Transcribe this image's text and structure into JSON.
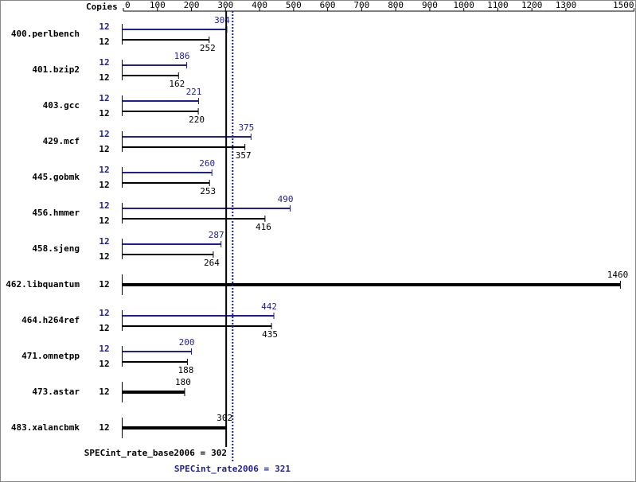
{
  "chart_data": {
    "type": "bar",
    "orientation": "horizontal",
    "copies_label": "Copies",
    "categories": [
      "400.perlbench",
      "401.bzip2",
      "403.gcc",
      "429.mcf",
      "445.gobmk",
      "456.hmmer",
      "458.sjeng",
      "462.libquantum",
      "464.h264ref",
      "471.omnetpp",
      "473.astar",
      "483.xalancbmk"
    ],
    "series": [
      {
        "color": "#1f1f9a",
        "copies": [
          12,
          12,
          12,
          12,
          12,
          12,
          12,
          null,
          12,
          12,
          null,
          null
        ],
        "values": [
          304,
          186,
          221,
          375,
          260,
          490,
          287,
          null,
          442,
          200,
          null,
          null
        ]
      },
      {
        "color": "#000000",
        "copies": [
          12,
          12,
          12,
          12,
          12,
          12,
          12,
          12,
          12,
          12,
          12,
          12
        ],
        "values": [
          252,
          162,
          220,
          357,
          253,
          416,
          264,
          1460,
          435,
          188,
          180,
          302
        ]
      }
    ],
    "xlim": [
      0,
      1500
    ],
    "xticks": [
      0,
      100,
      200,
      300,
      400,
      500,
      600,
      700,
      800,
      900,
      1000,
      1100,
      1200,
      1300,
      1500
    ],
    "reference_lines": [
      {
        "label": "SPECint_rate_base2006 =",
        "value": 302,
        "color": "#000000",
        "style": "solid"
      },
      {
        "label": "SPECint_rate2006 =",
        "value": 321,
        "color": "#1f1f9a",
        "style": "dotted"
      }
    ]
  }
}
